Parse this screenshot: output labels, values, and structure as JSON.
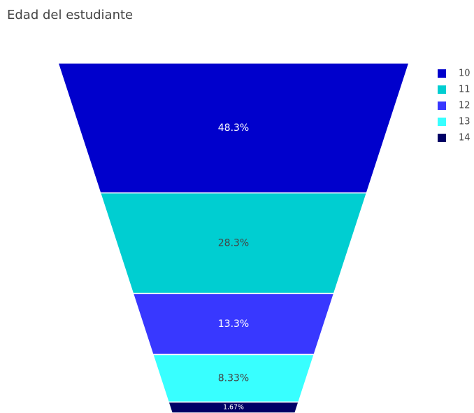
{
  "chart_data": {
    "type": "funnelarea",
    "title": "Edad del estudiante",
    "categories": [
      "10",
      "11",
      "12",
      "13",
      "14"
    ],
    "values": [
      48.3,
      28.3,
      13.3,
      8.33,
      1.67
    ],
    "value_labels": [
      "48.3%",
      "28.3%",
      "13.3%",
      "8.33%",
      "1.67%"
    ],
    "colors": [
      "#0000cc",
      "#00ced1",
      "#3838ff",
      "#38ffff",
      "#000066"
    ],
    "legend": "top-right"
  }
}
